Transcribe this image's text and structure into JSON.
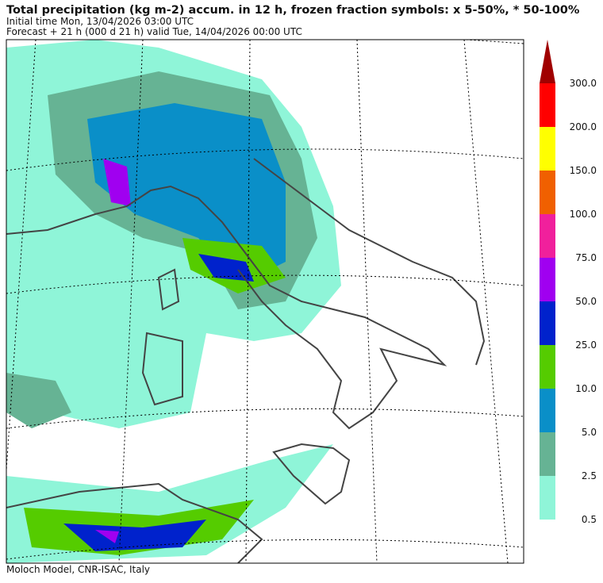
{
  "header": {
    "title": "Total precipitation (kg m-2) accum. in 12 h, frozen fraction symbols: x 5-50%, * 50-100%",
    "initial_time": "Initial time  Mon, 13/04/2026  03:00 UTC",
    "forecast": "Forecast  +  21 h  (000 d 21 h)  valid Tue, 14/04/2026 00:00 UTC"
  },
  "colorbar": {
    "levels": [
      {
        "value": 0.5,
        "label": "0.5"
      },
      {
        "value": 2.5,
        "label": "2.5"
      },
      {
        "value": 5,
        "label": "5.0"
      },
      {
        "value": 10,
        "label": "10.0"
      },
      {
        "value": 25,
        "label": "25.0"
      },
      {
        "value": 50,
        "label": "50.0"
      },
      {
        "value": 75,
        "label": "75.0"
      },
      {
        "value": 100,
        "label": "100.0"
      },
      {
        "value": 150,
        "label": "150.0"
      },
      {
        "value": 200,
        "label": "200.0"
      },
      {
        "value": 300,
        "label": "300.0"
      }
    ],
    "colors": [
      "#8ff5d8",
      "#66b394",
      "#0a8fc8",
      "#55cc00",
      "#0022cc",
      "#a000f0",
      "#f0209c",
      "#f06000",
      "#ffff00",
      "#ff0000",
      "#a00000"
    ]
  },
  "footer": "Moloch Model, CNR-ISAC, Italy"
}
